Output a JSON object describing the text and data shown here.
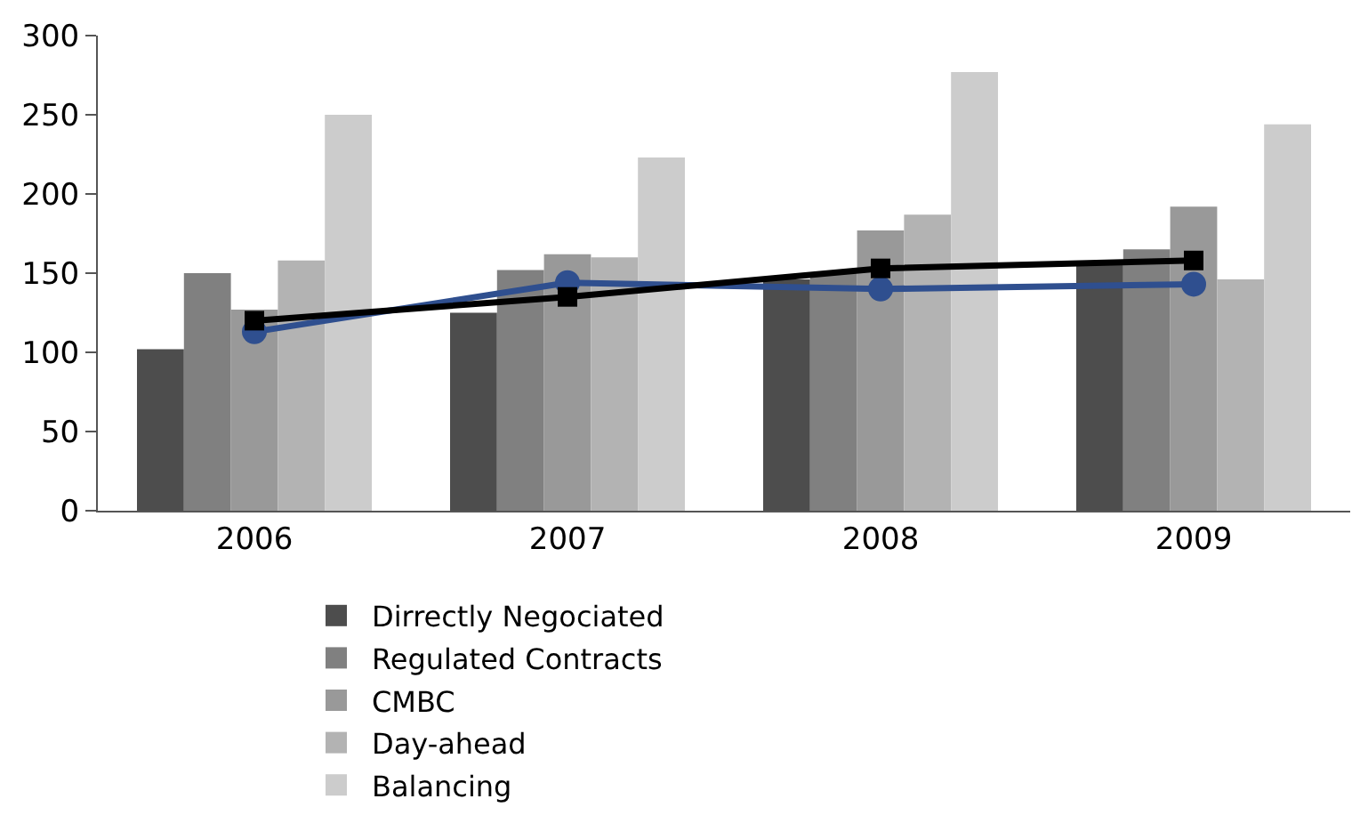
{
  "chart_data": {
    "type": "bar",
    "categories": [
      "2006",
      "2007",
      "2008",
      "2009"
    ],
    "series": [
      {
        "name": "Dirrectly Negociated",
        "color": "#4d4d4d",
        "values": [
          102,
          125,
          146,
          156
        ]
      },
      {
        "name": "Regulated Contracts",
        "color": "#808080",
        "values": [
          150,
          152,
          150,
          165
        ]
      },
      {
        "name": "CMBC",
        "color": "#999999",
        "values": [
          127,
          162,
          177,
          192
        ]
      },
      {
        "name": "Day-ahead",
        "color": "#b3b3b3",
        "values": [
          158,
          160,
          187,
          146
        ]
      },
      {
        "name": "Balancing",
        "color": "#cccccc",
        "values": [
          250,
          223,
          277,
          244
        ]
      },
      {
        "type": "line",
        "color": "#2f4f8f",
        "marker": "circle",
        "values": [
          113,
          144,
          140,
          143
        ]
      },
      {
        "type": "line",
        "color": "#000000",
        "marker": "square",
        "values": [
          120,
          135,
          153,
          158
        ]
      }
    ],
    "ylim": [
      0,
      300
    ],
    "yticks": [
      0,
      50,
      100,
      150,
      200,
      250,
      300
    ],
    "legend": "bottom"
  }
}
